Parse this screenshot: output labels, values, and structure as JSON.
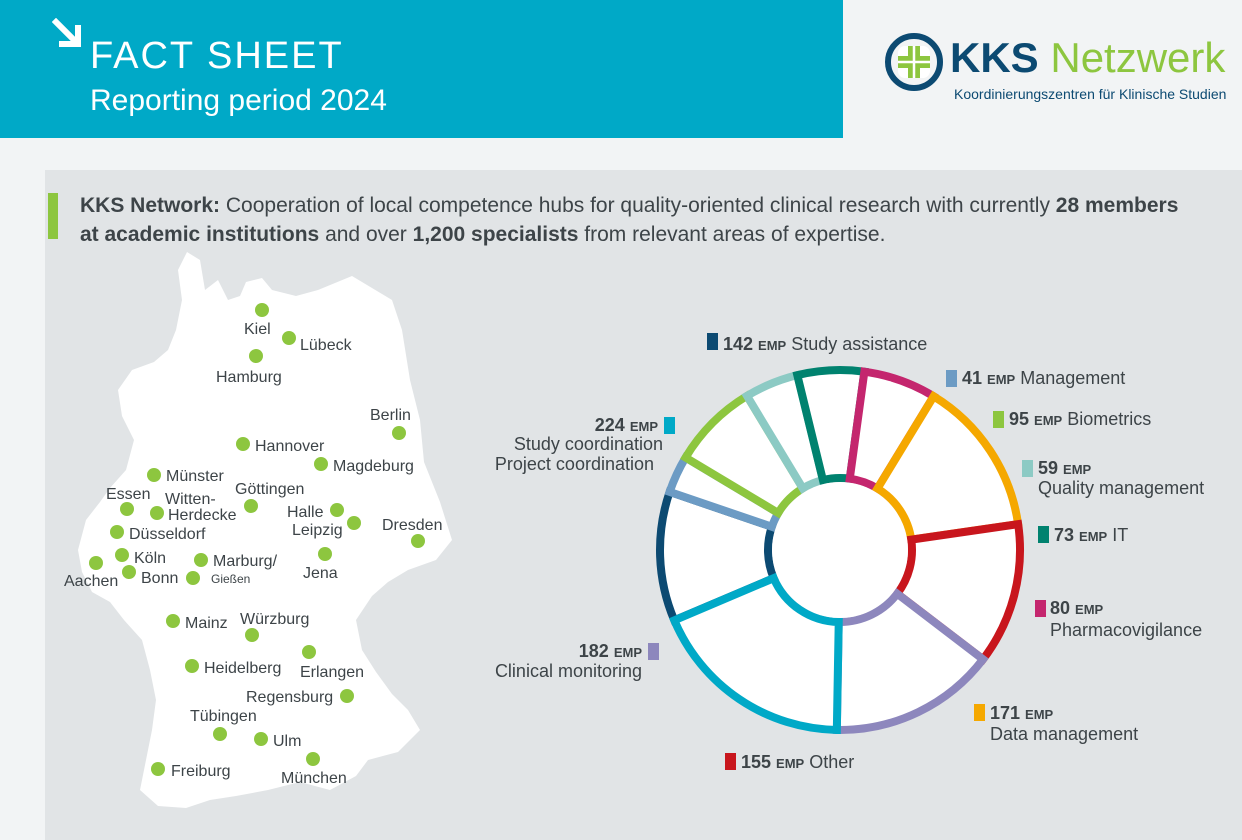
{
  "header": {
    "title": "FACT SHEET",
    "subtitle": "Reporting period 2024",
    "icon": "arrow-down-right-icon"
  },
  "logo": {
    "name_part1": "KKS",
    "name_part2": "Netzwerk",
    "tagline": "Koordinierungszentren für Klinische Studien",
    "colors": {
      "navy": "#0c4a72",
      "green": "#8dc63f"
    }
  },
  "intro": {
    "bold1": "KKS Network:",
    "text1": " Cooperation of local competence hubs for quality-oriented clinical research with currently ",
    "bold2": "28 members at academic institutions",
    "text2": " and over ",
    "bold3": "1,200 specialists",
    "text3": " from relevant areas of expertise."
  },
  "map": {
    "dot_color": "#8dc63f",
    "cities": [
      {
        "name": "Kiel"
      },
      {
        "name": "Lübeck"
      },
      {
        "name": "Hamburg"
      },
      {
        "name": "Berlin"
      },
      {
        "name": "Hannover"
      },
      {
        "name": "Magdeburg"
      },
      {
        "name": "Münster"
      },
      {
        "name": "Essen"
      },
      {
        "name": "Witten-"
      },
      {
        "name": "Herdecke"
      },
      {
        "name": "Göttingen"
      },
      {
        "name": "Halle"
      },
      {
        "name": "Leipzig"
      },
      {
        "name": "Dresden"
      },
      {
        "name": "Düsseldorf"
      },
      {
        "name": "Köln"
      },
      {
        "name": "Marburg/"
      },
      {
        "name": "Gießen"
      },
      {
        "name": "Aachen"
      },
      {
        "name": "Bonn"
      },
      {
        "name": "Jena"
      },
      {
        "name": "Mainz"
      },
      {
        "name": "Würzburg"
      },
      {
        "name": "Erlangen"
      },
      {
        "name": "Heidelberg"
      },
      {
        "name": "Regensburg"
      },
      {
        "name": "Tübingen"
      },
      {
        "name": "Ulm"
      },
      {
        "name": "Freiburg"
      },
      {
        "name": "München"
      }
    ]
  },
  "chart_data": {
    "type": "pie",
    "variant": "donut",
    "unit": "EMP",
    "slices": [
      {
        "label": "Study assistance",
        "value": 142,
        "color": "#0c4a72"
      },
      {
        "label": "Management",
        "value": 41,
        "color": "#6c9bc4"
      },
      {
        "label": "Biometrics",
        "value": 95,
        "color": "#8dc63f"
      },
      {
        "label": "Quality management",
        "value": 59,
        "color": "#8ccac4"
      },
      {
        "label": "IT",
        "value": 73,
        "color": "#00826f"
      },
      {
        "label": "Pharmacovigilance",
        "value": 80,
        "color": "#c4266e"
      },
      {
        "label": "Data management",
        "value": 171,
        "color": "#f5a800"
      },
      {
        "label": "Other",
        "value": 155,
        "color": "#c8161d"
      },
      {
        "label": "Clinical monitoring",
        "value": 182,
        "color": "#8d87bd"
      },
      {
        "label": "Study coordination",
        "label2": "Project coordination",
        "value": 224,
        "color": "#00a9c7"
      }
    ]
  }
}
